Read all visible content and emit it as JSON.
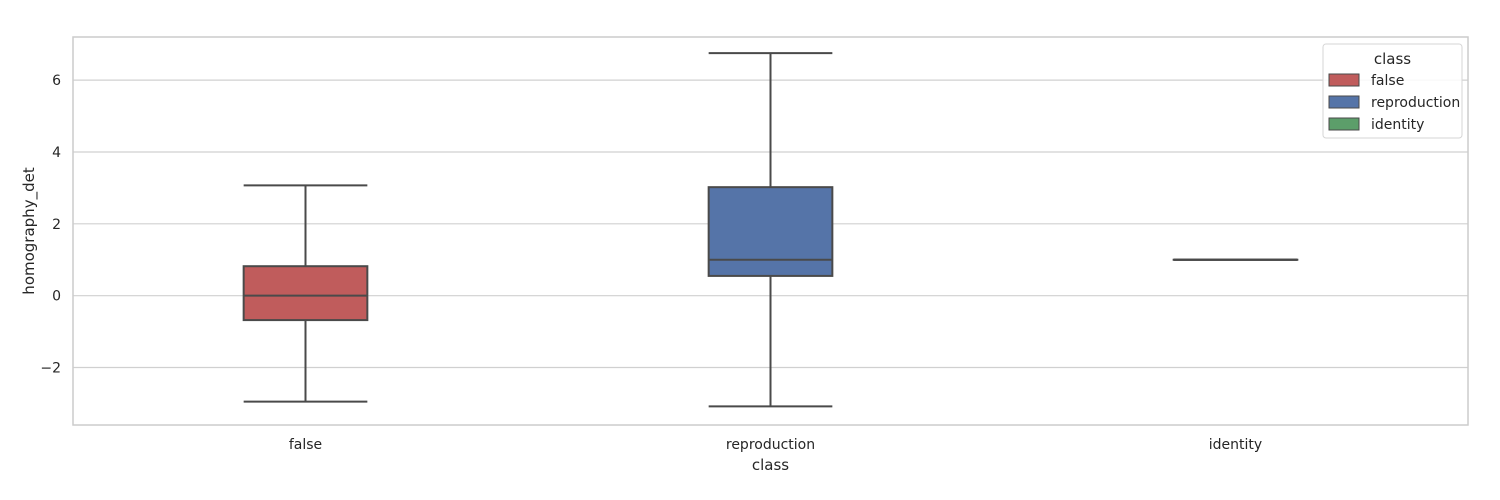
{
  "chart_data": {
    "type": "box",
    "xlabel": "class",
    "ylabel": "homography_det",
    "categories": [
      "false",
      "reproduction",
      "identity"
    ],
    "ylim": [
      -3.6,
      7.2
    ],
    "yticks": [
      -2,
      0,
      2,
      4,
      6
    ],
    "ytick_labels": [
      "−2",
      "0",
      "2",
      "4",
      "6"
    ],
    "grid": "horizontal",
    "legend": {
      "title": "class",
      "placement": "top-right",
      "entries": [
        "false",
        "reproduction",
        "identity"
      ]
    },
    "series": [
      {
        "name": "false",
        "category": "false",
        "color": "#c05c5c",
        "whisker_low": -2.95,
        "q1": -0.68,
        "median": 0.0,
        "q3": 0.82,
        "whisker_high": 3.07
      },
      {
        "name": "reproduction",
        "category": "reproduction",
        "color": "#5574a8",
        "whisker_low": -3.08,
        "q1": 0.55,
        "median": 1.0,
        "q3": 3.02,
        "whisker_high": 6.75
      },
      {
        "name": "identity",
        "category": "identity",
        "color": "#5c9e6a",
        "whisker_low": 1.0,
        "q1": 1.0,
        "median": 1.0,
        "q3": 1.0,
        "whisker_high": 1.0
      }
    ]
  }
}
